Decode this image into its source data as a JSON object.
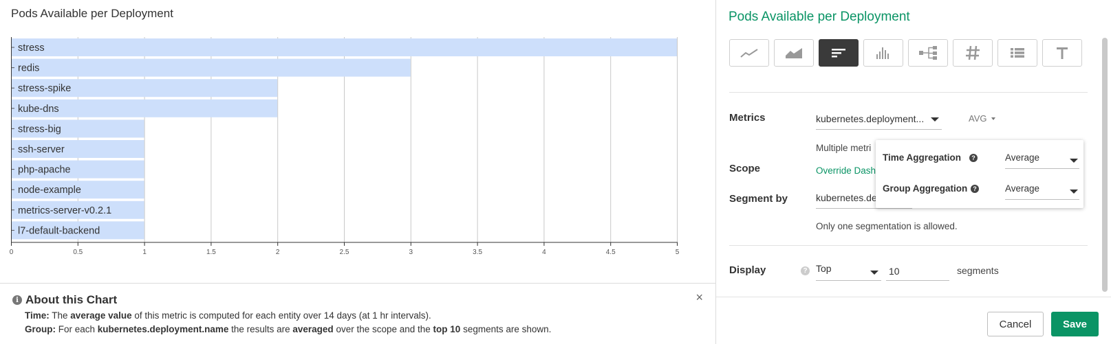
{
  "chart": {
    "title": "Pods Available per Deployment"
  },
  "chart_data": {
    "type": "bar",
    "orientation": "horizontal",
    "title": "Pods Available per Deployment",
    "categories": [
      "stress",
      "redis",
      "stress-spike",
      "kube-dns",
      "stress-big",
      "ssh-server",
      "php-apache",
      "node-example",
      "metrics-server-v0.2.1",
      "l7-default-backend"
    ],
    "values": [
      5,
      3,
      2,
      2,
      1,
      1,
      1,
      1,
      1,
      1
    ],
    "xlim": [
      0,
      5
    ],
    "xticks": [
      "0",
      "0.5",
      "1",
      "1.5",
      "2",
      "2.5",
      "3",
      "3.5",
      "4",
      "4.5",
      "5"
    ],
    "grid": true,
    "bar_color": "#cddffb"
  },
  "about": {
    "title": "About this Chart",
    "close": "×",
    "info": "i",
    "time_label": "Time:",
    "time_pre": " The ",
    "time_bold": "average value",
    "time_post": " of this metric is computed for each entity over 14 days (at 1 hr intervals).",
    "group_label": "Group:",
    "group_pre": " For each ",
    "group_bold1": "kubernetes.deployment.name",
    "group_mid1": " the results are ",
    "group_bold2": "averaged",
    "group_mid2": " over the scope and the ",
    "group_bold3": "top 10",
    "group_post": " segments are shown."
  },
  "panel": {
    "title": "Pods Available per Deployment",
    "chart_types": [
      {
        "name": "line",
        "icon": "line-chart-icon",
        "active": false
      },
      {
        "name": "area",
        "icon": "area-chart-icon",
        "active": false
      },
      {
        "name": "toplist",
        "icon": "toplist-icon",
        "active": true
      },
      {
        "name": "histogram",
        "icon": "histogram-icon",
        "active": false
      },
      {
        "name": "table",
        "icon": "tree-icon",
        "active": false
      },
      {
        "name": "number",
        "icon": "number-icon",
        "active": false
      },
      {
        "name": "list",
        "icon": "list-icon",
        "active": false
      },
      {
        "name": "text",
        "icon": "text-icon",
        "active": false
      }
    ],
    "metrics_label": "Metrics",
    "metric_value": "kubernetes.deployment.replicas.available",
    "metric_value_display": "kubernetes.deployment....",
    "avg_label": "AVG",
    "metric_note": "Multiple metri",
    "scope_label": "Scope",
    "scope_link": "Override Dash",
    "segment_label": "Segment by",
    "segment_value": "kubernetes.de",
    "segment_note": "Only one segmentation is allowed.",
    "display_label": "Display",
    "display_help": "?",
    "display_mode": "Top",
    "display_count": "10",
    "display_unit": "segments",
    "cancel": "Cancel",
    "save": "Save"
  },
  "aggregation": {
    "time_label": "Time Aggregation",
    "time_value": "Average",
    "group_label": "Group Aggregation",
    "group_value": "Average",
    "help": "?"
  }
}
